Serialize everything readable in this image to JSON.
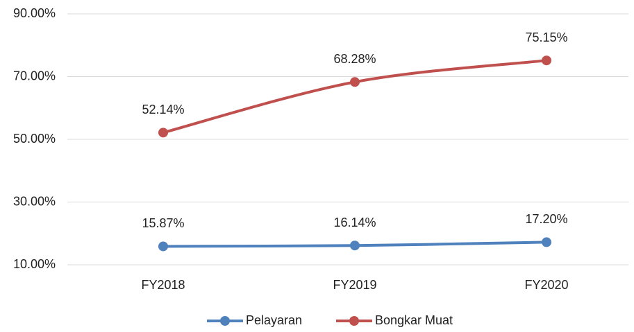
{
  "chart_data": {
    "type": "line",
    "categories": [
      "FY2018",
      "FY2019",
      "FY2020"
    ],
    "series": [
      {
        "name": "Pelayaran",
        "color": "#4f81bd",
        "values": [
          15.87,
          16.14,
          17.2
        ],
        "value_labels": [
          "15.87%",
          "16.14%",
          "17.20%"
        ]
      },
      {
        "name": "Bongkar Muat",
        "color": "#c0504d",
        "values": [
          52.14,
          68.28,
          75.15
        ],
        "value_labels": [
          "52.14%",
          "68.28%",
          "75.15%"
        ]
      }
    ],
    "ylim": [
      10,
      90
    ],
    "yticks": [
      {
        "value": 10,
        "label": "10.00%"
      },
      {
        "value": 30,
        "label": "30.00%"
      },
      {
        "value": 50,
        "label": "50.00%"
      },
      {
        "value": 70,
        "label": "70.00%"
      },
      {
        "value": 90,
        "label": "90.00%"
      }
    ],
    "grid": true,
    "legend": "bottom",
    "smooth": true
  }
}
